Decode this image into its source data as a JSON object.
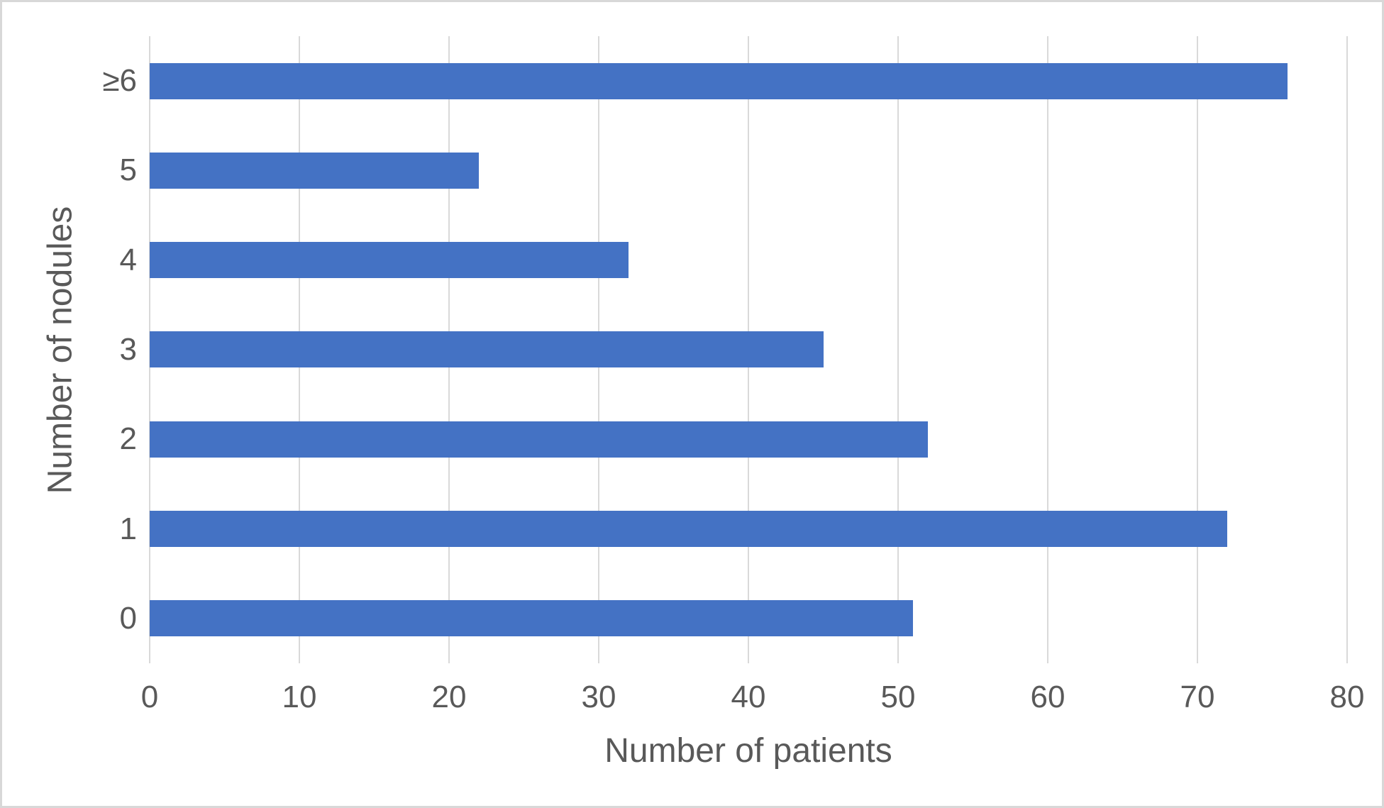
{
  "chart_data": {
    "type": "bar",
    "orientation": "horizontal",
    "title": "",
    "categories": [
      "≥6",
      "5",
      "4",
      "3",
      "2",
      "1",
      "0"
    ],
    "values": [
      76,
      22,
      32,
      45,
      52,
      72,
      51
    ],
    "xlabel": "Number of patients",
    "ylabel": "Number of nodules",
    "xlim": [
      0,
      80
    ],
    "xticks": [
      0,
      10,
      20,
      30,
      40,
      50,
      60,
      70,
      80
    ],
    "grid": true,
    "legend": false,
    "colors": {
      "bar": "#4472c4",
      "gridline": "#d9d9d9",
      "text": "#595959",
      "frame_border": "#d8d8d8",
      "background": "#ffffff"
    }
  }
}
